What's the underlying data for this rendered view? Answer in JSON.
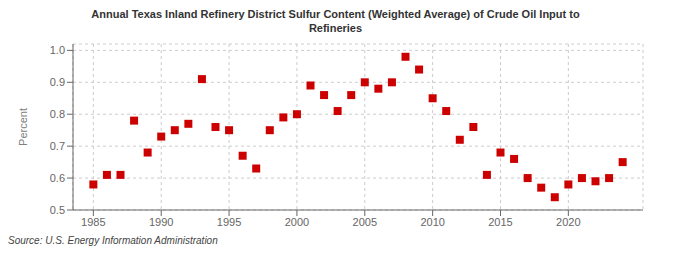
{
  "chart_data": {
    "type": "scatter",
    "title": "Annual Texas Inland Refinery District Sulfur Content (Weighted Average) of Crude Oil Input to\nRefineries",
    "ylabel": "Percent",
    "annotations": [
      "Source: U.S. Energy Information Administration"
    ],
    "color": "#cc0000",
    "marker": "square",
    "grid": true,
    "xlim": [
      1983.5,
      2025.5
    ],
    "ylim": [
      0.5,
      1.02
    ],
    "xticks": [
      1985,
      1990,
      1995,
      2000,
      2005,
      2010,
      2015,
      2020
    ],
    "yticks": [
      0.5,
      0.6,
      0.7,
      0.8,
      0.9,
      {
        "value": 1.0,
        "label": "1.0"
      }
    ],
    "x": [
      1985,
      1986,
      1987,
      1988,
      1989,
      1990,
      1991,
      1992,
      1993,
      1994,
      1995,
      1996,
      1997,
      1998,
      1999,
      2000,
      2001,
      2002,
      2003,
      2004,
      2005,
      2006,
      2007,
      2008,
      2009,
      2010,
      2011,
      2012,
      2013,
      2014,
      2015,
      2016,
      2017,
      2018,
      2019,
      2020,
      2021,
      2022,
      2023,
      2024
    ],
    "values": [
      0.58,
      0.61,
      0.61,
      0.78,
      0.68,
      0.73,
      0.75,
      0.77,
      0.91,
      0.76,
      0.75,
      0.67,
      0.63,
      0.75,
      0.79,
      0.8,
      0.89,
      0.86,
      0.81,
      0.86,
      0.9,
      0.88,
      0.9,
      0.98,
      0.94,
      0.85,
      0.81,
      0.72,
      0.76,
      0.61,
      0.68,
      0.66,
      0.6,
      0.57,
      0.54,
      0.58,
      0.6,
      0.59,
      0.6,
      0.65
    ]
  }
}
